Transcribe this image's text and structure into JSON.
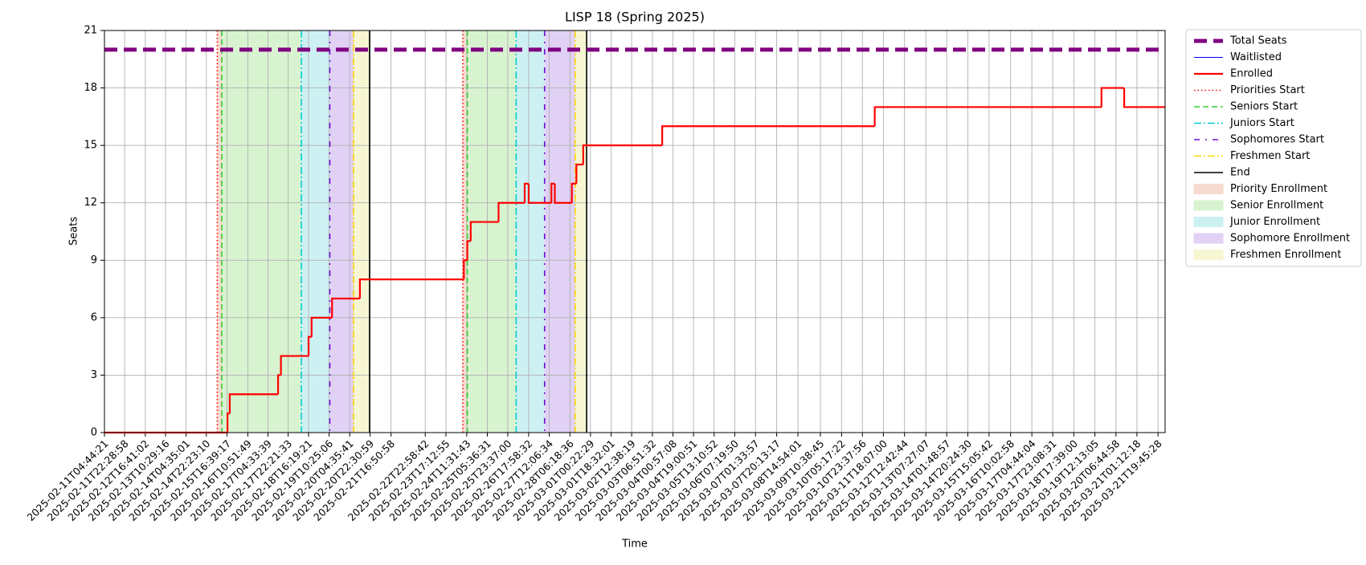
{
  "chart_data": {
    "type": "step",
    "title": "LISP 18 (Spring 2025)",
    "x_label": "Time",
    "y_label": "Seats",
    "xlim": [
      "2025-02-11T04:44:21",
      "2025-03-22T02:00:00"
    ],
    "ylim": [
      0,
      21
    ],
    "yticks": [
      0,
      3,
      6,
      9,
      12,
      15,
      18,
      21
    ],
    "xticks": [
      "2025-02-11T04:44:21",
      "2025-02-11T22:28:58",
      "2025-02-12T16:41:02",
      "2025-02-13T10:29:16",
      "2025-02-14T04:35:01",
      "2025-02-14T22:23:10",
      "2025-02-15T16:39:17",
      "2025-02-16T10:51:49",
      "2025-02-17T04:33:39",
      "2025-02-17T22:21:33",
      "2025-02-18T16:19:21",
      "2025-02-19T10:25:06",
      "2025-02-20T04:35:41",
      "2025-02-20T22:30:59",
      "2025-02-21T16:50:58",
      "2025-02-22T22:58:42",
      "2025-02-23T17:12:55",
      "2025-02-24T11:31:43",
      "2025-02-25T05:36:31",
      "2025-02-25T23:37:00",
      "2025-02-26T17:58:32",
      "2025-02-27T12:06:34",
      "2025-02-28T06:18:36",
      "2025-03-01T00:22:29",
      "2025-03-01T18:32:01",
      "2025-03-02T12:38:19",
      "2025-03-03T06:51:32",
      "2025-03-04T00:57:08",
      "2025-03-04T19:00:51",
      "2025-03-05T13:10:52",
      "2025-03-06T07:19:50",
      "2025-03-07T01:33:57",
      "2025-03-07T20:13:17",
      "2025-03-08T14:54:01",
      "2025-03-09T10:38:45",
      "2025-03-10T05:17:22",
      "2025-03-10T23:37:56",
      "2025-03-11T18:07:00",
      "2025-03-12T12:42:44",
      "2025-03-13T07:27:07",
      "2025-03-14T01:48:57",
      "2025-03-14T20:24:30",
      "2025-03-15T15:05:42",
      "2025-03-16T10:02:58",
      "2025-03-17T04:44:04",
      "2025-03-17T23:08:31",
      "2025-03-18T17:39:00",
      "2025-03-19T12:13:05",
      "2025-03-20T06:44:58",
      "2025-03-21T01:12:18",
      "2025-03-21T19:45:28"
    ],
    "grid": true,
    "legend": "outside-upper-right",
    "series": [
      {
        "name": "Total Seats",
        "color": "#800080",
        "style": "hline",
        "linewidth": 5,
        "values": [
          20
        ]
      },
      {
        "name": "Waitlisted",
        "color": "#0000ff",
        "style": "line",
        "linewidth": 1,
        "x": [
          "2025-02-11T04:44:21",
          "2025-03-22T02:00:00"
        ],
        "values": [
          0,
          0
        ]
      },
      {
        "name": "Enrolled",
        "color": "#ff0000",
        "style": "steps",
        "linewidth": 2.2,
        "x": [
          "2025-02-11T04:44:21",
          "2025-02-15T17:00:00",
          "2025-02-15T19:00:00",
          "2025-02-17T13:30:00",
          "2025-02-17T16:00:00",
          "2025-02-18T16:20:00",
          "2025-02-18T19:00:00",
          "2025-02-19T13:00:00",
          "2025-02-20T13:30:00",
          "2025-02-24T09:00:00",
          "2025-02-24T12:00:00",
          "2025-02-24T15:00:00",
          "2025-02-25T15:30:00",
          "2025-02-26T14:30:00",
          "2025-02-26T18:00:00",
          "2025-02-27T14:00:00",
          "2025-02-27T17:00:00",
          "2025-02-28T08:00:00",
          "2025-02-28T12:00:00",
          "2025-02-28T18:00:00",
          "2025-03-03T15:30:00",
          "2025-03-11T10:30:00",
          "2025-03-19T18:00:00",
          "2025-03-20T14:00:00",
          "2025-03-22T02:00:00"
        ],
        "values": [
          0,
          1,
          2,
          3,
          4,
          5,
          6,
          7,
          8,
          9,
          10,
          11,
          12,
          13,
          12,
          13,
          12,
          13,
          14,
          15,
          16,
          17,
          18,
          17,
          17
        ]
      }
    ],
    "vlines": [
      {
        "name": "Priorities Start",
        "color": "#ff0000",
        "dash": "dotted",
        "x": [
          "2025-02-15T08:00:00",
          "2025-02-24T08:00:00"
        ]
      },
      {
        "name": "Seniors Start",
        "color": "#32cd32",
        "dash": "dashed",
        "x": [
          "2025-02-15T12:00:00",
          "2025-02-24T12:00:00"
        ]
      },
      {
        "name": "Juniors Start",
        "color": "#00ced1",
        "dash": "dashdot",
        "x": [
          "2025-02-18T10:00:00",
          "2025-02-26T07:00:00"
        ]
      },
      {
        "name": "Sophomores Start",
        "color": "#6a0dcd",
        "dash": "loose-dashdot",
        "x": [
          "2025-02-19T11:00:00",
          "2025-02-27T08:00:00"
        ]
      },
      {
        "name": "Freshmen Start",
        "color": "#ffd700",
        "dash": "dashdot",
        "x": [
          "2025-02-20T08:00:00",
          "2025-02-28T11:00:00"
        ]
      },
      {
        "name": "End",
        "color": "#000000",
        "dash": "solid",
        "x": [
          "2025-02-20T22:00:00",
          "2025-02-28T21:00:00"
        ]
      }
    ],
    "spans": [
      {
        "name": "Priority Enrollment",
        "color": "#f6dcd0",
        "ranges": [
          [
            "2025-02-15T08:00:00",
            "2025-02-15T12:00:00"
          ],
          [
            "2025-02-24T08:00:00",
            "2025-02-24T12:00:00"
          ]
        ]
      },
      {
        "name": "Senior Enrollment",
        "color": "#d8f3d0",
        "ranges": [
          [
            "2025-02-15T12:00:00",
            "2025-02-18T10:00:00"
          ],
          [
            "2025-02-24T12:00:00",
            "2025-02-26T07:00:00"
          ]
        ]
      },
      {
        "name": "Junior Enrollment",
        "color": "#cdf0f3",
        "ranges": [
          [
            "2025-02-18T10:00:00",
            "2025-02-19T11:00:00"
          ],
          [
            "2025-02-26T07:00:00",
            "2025-02-27T08:00:00"
          ]
        ]
      },
      {
        "name": "Sophomore Enrollment",
        "color": "#e0d1f5",
        "ranges": [
          [
            "2025-02-19T11:00:00",
            "2025-02-20T08:00:00"
          ],
          [
            "2025-02-27T08:00:00",
            "2025-02-28T11:00:00"
          ]
        ]
      },
      {
        "name": "Freshmen Enrollment",
        "color": "#f6f6d3",
        "ranges": [
          [
            "2025-02-20T08:00:00",
            "2025-02-20T22:00:00"
          ],
          [
            "2025-02-28T11:00:00",
            "2025-02-28T21:00:00"
          ]
        ]
      }
    ]
  }
}
